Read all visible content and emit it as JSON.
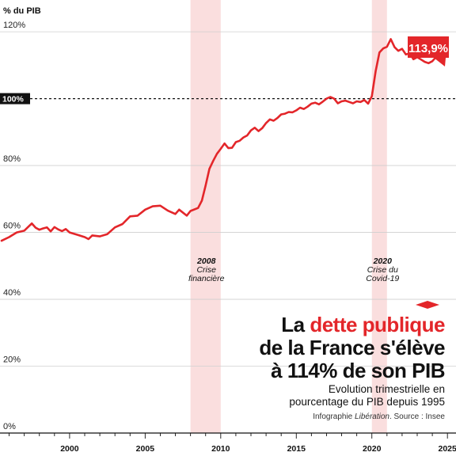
{
  "chart_data": {
    "type": "line",
    "title_parts": [
      "La ",
      "dette publique",
      " de la France s'élève",
      "à 114% de son PIB"
    ],
    "subtitle_lines": [
      "Evolution trimestrielle en",
      "pourcentage du PIB depuis 1995"
    ],
    "credit": {
      "prefix": "Infographie ",
      "brand": "Libération",
      "suffix": ". Source : Insee"
    },
    "ylabel": "% du PIB",
    "ylim": [
      0,
      125
    ],
    "xlim": [
      1995.5,
      2025.2
    ],
    "y_ticks": [
      {
        "value": 0,
        "label": "0%"
      },
      {
        "value": 20,
        "label": "20%"
      },
      {
        "value": 40,
        "label": "40%"
      },
      {
        "value": 60,
        "label": "60%"
      },
      {
        "value": 80,
        "label": "80%"
      },
      {
        "value": 100,
        "label": "100%"
      },
      {
        "value": 120,
        "label": "120%"
      }
    ],
    "x_ticks": [
      {
        "value": 2000,
        "label": "2000"
      },
      {
        "value": 2005,
        "label": "2005"
      },
      {
        "value": 2010,
        "label": "2010"
      },
      {
        "value": 2015,
        "label": "2015"
      },
      {
        "value": 2020,
        "label": "2020"
      },
      {
        "value": 2025,
        "label": "2025"
      }
    ],
    "reference_line": {
      "value": 100,
      "label": "100%"
    },
    "shaded_periods": [
      {
        "start": 2008.0,
        "end": 2010.0,
        "year": "2008",
        "label_lines": [
          "Crise",
          "financière"
        ]
      },
      {
        "start": 2020.0,
        "end": 2021.0,
        "year": "2020",
        "label_lines": [
          "Crise du",
          "Covid-19"
        ]
      }
    ],
    "last_value_label": "113,9%",
    "colors": {
      "line": "#e3262a",
      "shade": "#fadede",
      "reference": "#111111",
      "accent": "#e3262a"
    },
    "series": [
      {
        "values": [
          [
            1995.5,
            57.5
          ],
          [
            1996.0,
            58.6
          ],
          [
            1996.5,
            60.0
          ],
          [
            1997.0,
            60.5
          ],
          [
            1997.25,
            61.6
          ],
          [
            1997.5,
            62.7
          ],
          [
            1997.75,
            61.4
          ],
          [
            1998.0,
            60.8
          ],
          [
            1998.25,
            61.2
          ],
          [
            1998.5,
            61.5
          ],
          [
            1998.75,
            60.3
          ],
          [
            1999.0,
            61.6
          ],
          [
            1999.25,
            60.9
          ],
          [
            1999.5,
            60.4
          ],
          [
            1999.75,
            61.0
          ],
          [
            2000.0,
            60.0
          ],
          [
            2000.5,
            59.3
          ],
          [
            2001.0,
            58.6
          ],
          [
            2001.25,
            58.0
          ],
          [
            2001.5,
            59.1
          ],
          [
            2002.0,
            58.8
          ],
          [
            2002.5,
            59.5
          ],
          [
            2003.0,
            61.5
          ],
          [
            2003.5,
            62.5
          ],
          [
            2004.0,
            64.8
          ],
          [
            2004.5,
            65.0
          ],
          [
            2005.0,
            66.8
          ],
          [
            2005.5,
            67.8
          ],
          [
            2006.0,
            68.0
          ],
          [
            2006.5,
            66.5
          ],
          [
            2007.0,
            65.5
          ],
          [
            2007.25,
            66.8
          ],
          [
            2007.75,
            65.0
          ],
          [
            2008.0,
            66.4
          ],
          [
            2008.5,
            67.3
          ],
          [
            2008.75,
            69.5
          ],
          [
            2009.0,
            74.0
          ],
          [
            2009.25,
            79.0
          ],
          [
            2009.5,
            81.4
          ],
          [
            2009.75,
            83.5
          ],
          [
            2010.0,
            85.0
          ],
          [
            2010.25,
            86.6
          ],
          [
            2010.5,
            85.2
          ],
          [
            2010.75,
            85.3
          ],
          [
            2011.0,
            87.0
          ],
          [
            2011.25,
            87.4
          ],
          [
            2011.5,
            88.4
          ],
          [
            2011.75,
            89.0
          ],
          [
            2012.0,
            90.5
          ],
          [
            2012.25,
            91.3
          ],
          [
            2012.5,
            90.3
          ],
          [
            2012.75,
            91.2
          ],
          [
            2013.0,
            92.7
          ],
          [
            2013.25,
            93.8
          ],
          [
            2013.5,
            93.4
          ],
          [
            2013.75,
            94.2
          ],
          [
            2014.0,
            95.3
          ],
          [
            2014.25,
            95.5
          ],
          [
            2014.5,
            96.0
          ],
          [
            2014.75,
            95.9
          ],
          [
            2015.0,
            96.5
          ],
          [
            2015.25,
            97.3
          ],
          [
            2015.5,
            96.9
          ],
          [
            2015.75,
            97.6
          ],
          [
            2016.0,
            98.5
          ],
          [
            2016.25,
            98.8
          ],
          [
            2016.5,
            98.3
          ],
          [
            2016.75,
            99.1
          ],
          [
            2017.0,
            100.0
          ],
          [
            2017.25,
            100.5
          ],
          [
            2017.5,
            100.0
          ],
          [
            2017.75,
            98.6
          ],
          [
            2018.0,
            99.2
          ],
          [
            2018.25,
            99.4
          ],
          [
            2018.5,
            99.0
          ],
          [
            2018.75,
            98.6
          ],
          [
            2019.0,
            99.2
          ],
          [
            2019.25,
            99.0
          ],
          [
            2019.5,
            99.6
          ],
          [
            2019.75,
            98.5
          ],
          [
            2020.0,
            100.7
          ],
          [
            2020.25,
            108.2
          ],
          [
            2020.5,
            113.8
          ],
          [
            2020.75,
            115.0
          ],
          [
            2021.0,
            115.5
          ],
          [
            2021.25,
            117.8
          ],
          [
            2021.5,
            115.4
          ],
          [
            2021.75,
            114.3
          ],
          [
            2022.0,
            114.9
          ],
          [
            2022.25,
            113.2
          ],
          [
            2022.5,
            113.6
          ],
          [
            2022.75,
            111.8
          ],
          [
            2023.0,
            112.4
          ],
          [
            2023.25,
            111.7
          ],
          [
            2023.5,
            111.0
          ],
          [
            2023.75,
            110.6
          ],
          [
            2024.0,
            111.2
          ],
          [
            2024.25,
            112.5
          ],
          [
            2024.5,
            113.9
          ],
          [
            2024.75,
            113.6
          ],
          [
            2025.0,
            113.9
          ]
        ]
      }
    ]
  }
}
